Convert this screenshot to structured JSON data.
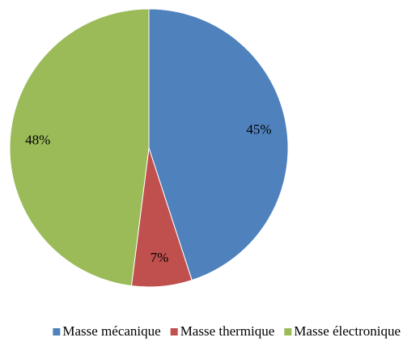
{
  "chart_data": {
    "type": "pie",
    "categories": [
      "Masse mécanique",
      "Masse thermique",
      "Masse électronique"
    ],
    "values": [
      45,
      7,
      48
    ],
    "value_labels": [
      "45%",
      "7%",
      "48%"
    ],
    "colors": [
      "#4f81bd",
      "#c0504d",
      "#9bbb59"
    ],
    "legend": "bottom"
  }
}
